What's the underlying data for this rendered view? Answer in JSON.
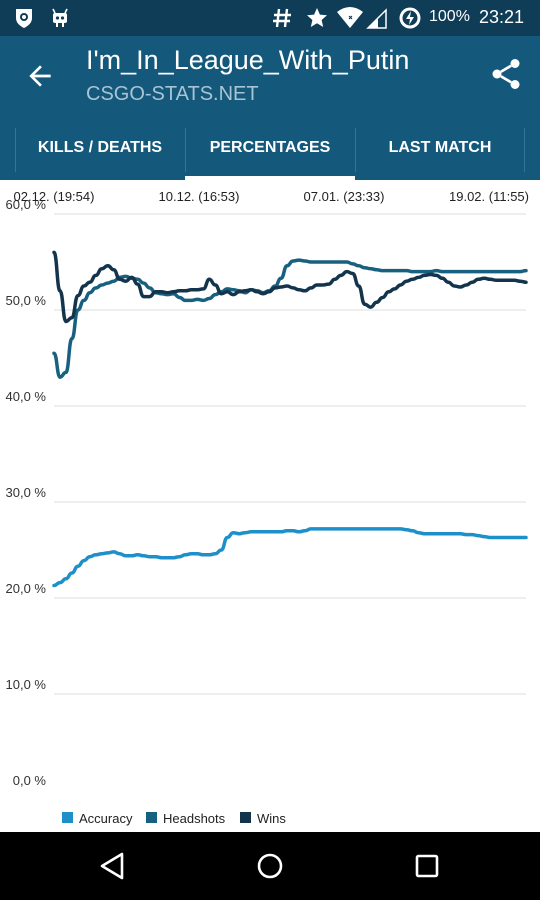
{
  "status_bar": {
    "battery_percent": "100%",
    "time": "23:21",
    "icons": [
      "cyanogen-shield-icon",
      "android-robot-icon",
      "hash-icon",
      "star-icon",
      "wifi-icon",
      "signal-icon",
      "battery-charging-icon"
    ]
  },
  "app_bar": {
    "title": "I'm_In_League_With_Putin",
    "subtitle": "CSGO-STATS.NET",
    "back_icon": "arrow-back-icon",
    "share_icon": "share-icon"
  },
  "tabs": {
    "items": [
      {
        "label": "KILLS / DEATHS",
        "selected": false
      },
      {
        "label": "PERCENTAGES",
        "selected": true
      },
      {
        "label": "LAST MATCH",
        "selected": false
      }
    ]
  },
  "colors": {
    "status_bar": "#0f3d57",
    "app_bar": "#14597c",
    "accuracy": "#1d90c9",
    "headshots": "#18607f",
    "wins": "#14344c",
    "grid": "#dcdcdc"
  },
  "chart_data": {
    "type": "line",
    "x_tick_labels": [
      "02.12. (19:54)",
      "10.12. (16:53)",
      "07.01. (23:33)",
      "19.02. (11:55)"
    ],
    "y_tick_labels": [
      "0,0 %",
      "10,0 %",
      "20,0 %",
      "30,0 %",
      "40,0 %",
      "50,0 %",
      "60,0 %"
    ],
    "ylim": [
      0,
      60
    ],
    "grid": true,
    "legend_position": "bottom-left",
    "series": [
      {
        "name": "Accuracy",
        "color": "#1d90c9",
        "values": [
          21.3,
          21.6,
          22.0,
          22.6,
          23.3,
          23.9,
          24.3,
          24.5,
          24.6,
          24.7,
          24.8,
          24.6,
          24.4,
          24.4,
          24.5,
          24.4,
          24.3,
          24.3,
          24.2,
          24.2,
          24.2,
          24.3,
          24.5,
          24.6,
          24.6,
          24.5,
          24.5,
          24.6,
          25.0,
          26.3,
          26.8,
          26.7,
          26.8,
          26.9,
          26.9,
          26.9,
          26.9,
          26.9,
          26.9,
          27.0,
          27.0,
          26.9,
          27.0,
          27.2,
          27.2,
          27.2,
          27.2,
          27.2,
          27.2,
          27.2,
          27.2,
          27.2,
          27.2,
          27.2,
          27.2,
          27.2,
          27.2,
          27.2,
          27.2,
          27.1,
          27.0,
          26.8,
          26.7,
          26.7,
          26.7,
          26.7,
          26.7,
          26.7,
          26.7,
          26.6,
          26.6,
          26.5,
          26.4,
          26.3,
          26.3,
          26.3,
          26.3,
          26.3,
          26.3,
          26.3
        ]
      },
      {
        "name": "Headshots",
        "color": "#18607f",
        "values": [
          45.5,
          43.0,
          43.5,
          47.0,
          50.0,
          51.0,
          51.8,
          52.3,
          52.6,
          52.8,
          53.0,
          53.4,
          53.5,
          53.3,
          53.2,
          52.8,
          52.3,
          51.8,
          51.7,
          51.6,
          51.7,
          51.3,
          51.0,
          51.0,
          51.1,
          51.0,
          51.2,
          51.6,
          51.9,
          52.2,
          52.1,
          52.0,
          51.8,
          52.1,
          52.0,
          51.8,
          52.0,
          52.5,
          53.3,
          54.6,
          55.1,
          55.2,
          55.1,
          55.0,
          55.0,
          55.0,
          55.0,
          55.0,
          55.0,
          55.0,
          54.8,
          54.6,
          54.4,
          54.3,
          54.2,
          54.1,
          54.1,
          54.1,
          54.1,
          54.1,
          54.0,
          54.0,
          54.0,
          54.0,
          54.1,
          54.0,
          54.0,
          54.0,
          54.0,
          54.0,
          54.0,
          54.0,
          54.0,
          54.0,
          54.0,
          54.0,
          54.0,
          54.0,
          54.0,
          54.1
        ]
      },
      {
        "name": "Wins",
        "color": "#14344c",
        "values": [
          56.0,
          52.0,
          48.8,
          49.2,
          51.5,
          52.5,
          52.9,
          53.6,
          54.3,
          54.6,
          54.2,
          53.2,
          53.0,
          53.4,
          52.7,
          51.4,
          51.4,
          51.9,
          51.9,
          51.8,
          51.9,
          52.0,
          52.0,
          52.1,
          52.1,
          52.2,
          53.2,
          52.6,
          51.7,
          51.9,
          51.6,
          51.9,
          52.0,
          52.1,
          51.9,
          51.7,
          51.9,
          52.3,
          52.4,
          52.5,
          52.3,
          52.1,
          52.0,
          52.3,
          52.6,
          52.6,
          52.7,
          53.2,
          53.6,
          54.0,
          53.8,
          52.5,
          50.6,
          50.3,
          50.8,
          51.3,
          51.9,
          52.2,
          52.6,
          53.0,
          53.2,
          53.4,
          53.6,
          53.7,
          53.6,
          53.3,
          52.9,
          52.5,
          52.4,
          52.6,
          52.9,
          53.2,
          53.3,
          53.2,
          53.1,
          53.1,
          53.1,
          53.1,
          53.0,
          52.9
        ]
      }
    ]
  },
  "nav_bar": {
    "icons": [
      "back-triangle-icon",
      "home-circle-icon",
      "recents-square-icon"
    ]
  }
}
